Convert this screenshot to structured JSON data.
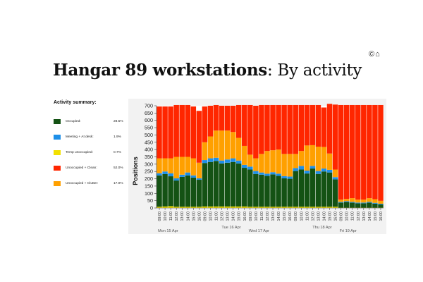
{
  "header": {
    "icons": [
      "copyright-icon",
      "home-icon"
    ],
    "title_bold": "Hangar 89 workstations",
    "title_rest": ": By activity"
  },
  "summary": {
    "heading": "Activity summary:",
    "items": [
      {
        "label": "Occupied:",
        "value": "28.5%",
        "color": "#145214"
      },
      {
        "label": "Meeting + At desk:",
        "value": "1.9%",
        "color": "#1e8fe8"
      },
      {
        "label": "Temp unoccupied:",
        "value": "0.7%",
        "color": "#f2e000"
      },
      {
        "label": "Unoccupied + Clean:",
        "value": "52.0%",
        "color": "#ff2600"
      },
      {
        "label": "Unoccupied + Clutter:",
        "value": "17.0%",
        "color": "#ffa000"
      }
    ]
  },
  "chart_data": {
    "type": "bar",
    "stacked": true,
    "ylabel": "Positions",
    "xlabel": "",
    "ylim": [
      0,
      700
    ],
    "yticks": [
      0,
      50,
      100,
      150,
      200,
      250,
      300,
      350,
      400,
      450,
      500,
      550,
      600,
      650,
      700
    ],
    "grid": false,
    "legend": "none",
    "categories": [
      "09:00",
      "10:00",
      "11:00",
      "12:00",
      "13:00",
      "14:00",
      "15:00",
      "16:00",
      "09:00",
      "10:00",
      "11:00",
      "12:00",
      "13:00",
      "14:00",
      "15:00",
      "16:00",
      "09:00",
      "10:00",
      "11:00",
      "12:00",
      "13:00",
      "14:00",
      "15:00",
      "16:00",
      "09:00",
      "10:00",
      "11:00",
      "12:00",
      "13:00",
      "14:00",
      "15:00",
      "16:00",
      "09:00",
      "10:00",
      "11:00",
      "12:00",
      "13:00",
      "14:00",
      "15:00",
      "16:00"
    ],
    "day_labels": [
      "Mon 15 Apr",
      "Tue 16 Apr",
      "Wed 17 Apr",
      "Thu 18 Apr",
      "Fri 19 Apr"
    ],
    "series": [
      {
        "name": "Temp unoccupied",
        "color": "#f2e000",
        "values": [
          8,
          10,
          12,
          8,
          8,
          8,
          8,
          8,
          10,
          10,
          10,
          10,
          10,
          10,
          10,
          10,
          8,
          8,
          8,
          8,
          8,
          8,
          8,
          8,
          8,
          8,
          8,
          8,
          8,
          8,
          8,
          8,
          2,
          2,
          2,
          2,
          2,
          2,
          2,
          2
        ]
      },
      {
        "name": "Occupied",
        "color": "#145214",
        "values": [
          215,
          222,
          205,
          180,
          205,
          215,
          200,
          185,
          298,
          305,
          312,
          295,
          300,
          305,
          295,
          265,
          255,
          225,
          220,
          212,
          222,
          212,
          195,
          192,
          245,
          255,
          228,
          262,
          225,
          242,
          235,
          188,
          35,
          40,
          35,
          30,
          30,
          35,
          28,
          22
        ]
      },
      {
        "name": "Meeting + At desk",
        "color": "#1e8fe8",
        "values": [
          15,
          18,
          20,
          15,
          15,
          20,
          15,
          10,
          20,
          25,
          22,
          20,
          22,
          25,
          20,
          20,
          20,
          20,
          15,
          15,
          15,
          15,
          15,
          15,
          20,
          25,
          20,
          18,
          20,
          20,
          18,
          15,
          5,
          5,
          5,
          5,
          5,
          5,
          5,
          5
        ]
      },
      {
        "name": "Unoccupied + Clutter",
        "color": "#ffa000",
        "values": [
          102,
          90,
          103,
          147,
          122,
          107,
          117,
          107,
          122,
          150,
          186,
          205,
          198,
          180,
          155,
          130,
          82,
          87,
          127,
          155,
          150,
          165,
          152,
          155,
          97,
          102,
          172,
          142,
          167,
          148,
          112,
          52,
          15,
          15,
          25,
          20,
          20,
          25,
          25,
          20
        ]
      },
      {
        "name": "Unoccupied + Clean",
        "color": "#ff2600",
        "values": [
          355,
          355,
          355,
          355,
          355,
          355,
          355,
          355,
          245,
          210,
          175,
          170,
          170,
          180,
          225,
          280,
          340,
          360,
          335,
          315,
          310,
          305,
          335,
          335,
          335,
          315,
          277,
          275,
          285,
          270,
          340,
          445,
          648,
          643,
          638,
          648,
          648,
          638,
          645,
          656
        ]
      }
    ]
  }
}
